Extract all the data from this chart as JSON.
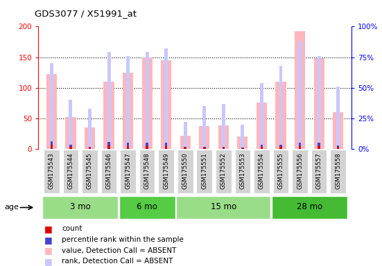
{
  "title": "GDS3077 / X51991_at",
  "samples": [
    "GSM175543",
    "GSM175544",
    "GSM175545",
    "GSM175546",
    "GSM175547",
    "GSM175548",
    "GSM175549",
    "GSM175550",
    "GSM175551",
    "GSM175552",
    "GSM175553",
    "GSM175554",
    "GSM175555",
    "GSM175556",
    "GSM175557",
    "GSM175558"
  ],
  "value_absent": [
    122,
    52,
    35,
    110,
    125,
    150,
    145,
    22,
    37,
    38,
    20,
    76,
    110,
    192,
    148,
    60
  ],
  "rank_absent_pct": [
    70,
    40,
    33,
    79,
    76,
    79,
    82,
    22,
    35,
    37,
    20,
    54,
    68,
    88,
    76,
    51
  ],
  "count_val": [
    7,
    4,
    2,
    6,
    5,
    5,
    5,
    2,
    2,
    2,
    1,
    4,
    4,
    5,
    5,
    3
  ],
  "percentile_val": [
    6,
    3,
    1.5,
    5,
    5,
    5,
    5,
    2,
    2,
    2,
    1,
    3,
    3,
    5,
    5,
    3
  ],
  "groups": [
    {
      "label": "3 mo",
      "start": 0,
      "end": 4,
      "color": "#99dd88"
    },
    {
      "label": "6 mo",
      "start": 4,
      "end": 7,
      "color": "#55cc44"
    },
    {
      "label": "15 mo",
      "start": 7,
      "end": 12,
      "color": "#99dd88"
    },
    {
      "label": "28 mo",
      "start": 12,
      "end": 16,
      "color": "#44bb33"
    }
  ],
  "ylim_left": [
    0,
    200
  ],
  "ylim_right": [
    0,
    100
  ],
  "yticks_left": [
    0,
    50,
    100,
    150,
    200
  ],
  "yticks_right": [
    0,
    25,
    50,
    75,
    100
  ],
  "ytick_labels_right": [
    "0%",
    "25%",
    "50%",
    "75%",
    "100%"
  ],
  "absent_bar_color": "#ffb6bc",
  "rank_absent_color": "#c8c8ff",
  "count_color": "#dd0000",
  "percentile_color": "#4444cc",
  "bg_color": "#ffffff"
}
